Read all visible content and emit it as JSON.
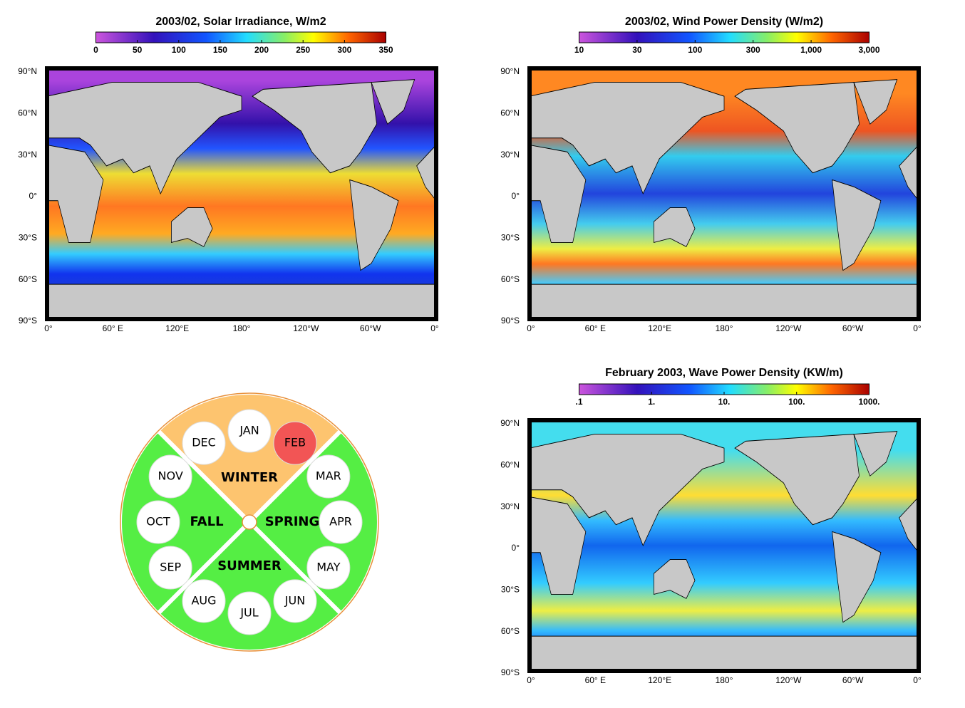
{
  "maps": [
    {
      "title": "2003/02, Solar Irradiance, W/m2",
      "colorbar_ticks": [
        "0",
        "50",
        "100",
        "150",
        "200",
        "250",
        "300",
        "350"
      ],
      "lat_labels": [
        "90°N",
        "60°N",
        "30°N",
        "0°",
        "30°S",
        "60°S",
        "90°S"
      ],
      "lon_labels": [
        "0°",
        "60° E",
        "120°E",
        "180°",
        "120°W",
        "60°W",
        "0°"
      ]
    },
    {
      "title": "2003/02, Wind Power Density (W/m2)",
      "colorbar_ticks": [
        "10",
        "30",
        "100",
        "300",
        "1,000",
        "3,000"
      ],
      "lat_labels": [
        "90°N",
        "60°N",
        "30°N",
        "0°",
        "30°S",
        "60°S",
        "90°S"
      ],
      "lon_labels": [
        "0°",
        "60° E",
        "120°E",
        "180°",
        "120°W",
        "60°W",
        "0°"
      ]
    },
    {
      "title": "February 2003, Wave Power Density (KW/m)",
      "colorbar_ticks": [
        ".1",
        "1.",
        "10.",
        "100.",
        "1000."
      ],
      "lat_labels": [
        "90°N",
        "60°N",
        "30°N",
        "0°",
        "30°S",
        "60°S",
        "90°S"
      ],
      "lon_labels": [
        "0°",
        "60° E",
        "120°E",
        "180°",
        "120°W",
        "60°W",
        "0°"
      ]
    }
  ],
  "wheel": {
    "seasons": [
      "WINTER",
      "SPRING",
      "SUMMER",
      "FALL"
    ],
    "months": [
      {
        "label": "DEC"
      },
      {
        "label": "JAN"
      },
      {
        "label": "FEB",
        "selected": true
      },
      {
        "label": "MAR"
      },
      {
        "label": "APR"
      },
      {
        "label": "MAY"
      },
      {
        "label": "JUN"
      },
      {
        "label": "JUL"
      },
      {
        "label": "AUG"
      },
      {
        "label": "SEP"
      },
      {
        "label": "OCT"
      },
      {
        "label": "NOV"
      }
    ]
  }
}
